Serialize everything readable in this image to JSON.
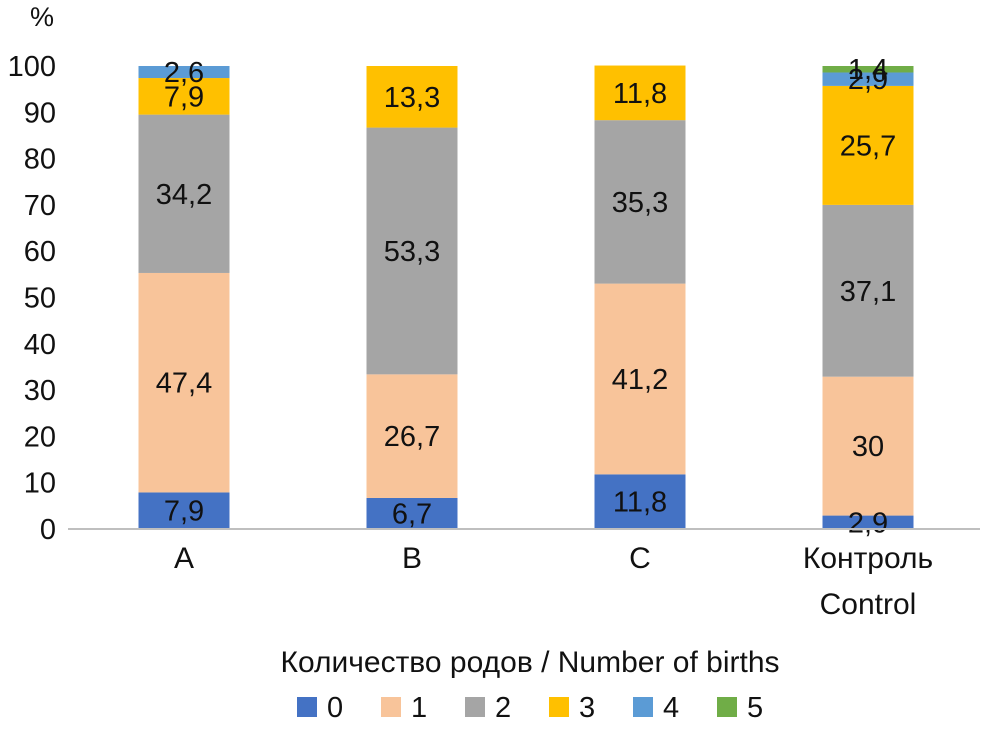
{
  "chart_data": {
    "type": "bar",
    "stacked": true,
    "categories": [
      [
        "A"
      ],
      [
        "B"
      ],
      [
        "C"
      ],
      [
        "Контроль",
        "Control"
      ]
    ],
    "y_unit_label": "%",
    "ylim": [
      0,
      100
    ],
    "yticks": [
      0,
      10,
      20,
      30,
      40,
      50,
      60,
      70,
      80,
      90,
      100
    ],
    "grid": false,
    "legend_title": "Количество родов / Number of births",
    "legend_position": "bottom",
    "series": [
      {
        "name": "0",
        "color": "#4472C4",
        "values": [
          7.9,
          6.7,
          11.8,
          2.9
        ],
        "labels": [
          "7,9",
          "6,7",
          "11,8",
          "2,9"
        ]
      },
      {
        "name": "1",
        "color": "#F8C49A",
        "values": [
          47.4,
          26.7,
          41.2,
          30
        ],
        "labels": [
          "47,4",
          "26,7",
          "41,2",
          "30"
        ]
      },
      {
        "name": "2",
        "color": "#A5A5A5",
        "values": [
          34.2,
          53.3,
          35.3,
          37.1
        ],
        "labels": [
          "34,2",
          "53,3",
          "35,3",
          "37,1"
        ]
      },
      {
        "name": "3",
        "color": "#FFC000",
        "values": [
          7.9,
          13.3,
          11.8,
          25.7
        ],
        "labels": [
          "7,9",
          "13,3",
          "11,8",
          "25,7"
        ]
      },
      {
        "name": "4",
        "color": "#5B9BD5",
        "values": [
          2.6,
          0,
          0,
          2.9
        ],
        "labels": [
          "2,6",
          "",
          "",
          "2,9"
        ]
      },
      {
        "name": "5",
        "color": "#70AD47",
        "values": [
          0,
          0,
          0,
          1.4
        ],
        "labels": [
          "",
          "",
          "",
          "1,4"
        ]
      }
    ]
  }
}
